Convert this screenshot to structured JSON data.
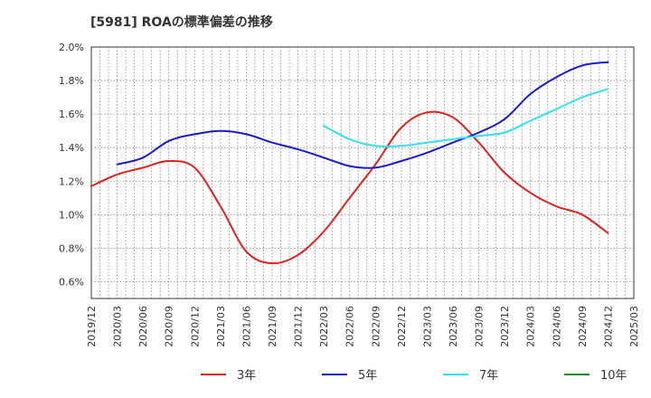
{
  "chart_data": {
    "type": "line",
    "title": "[5981]  ROAの標準偏差の推移",
    "xlabel": "",
    "ylabel": "",
    "ylim": [
      0.5,
      2.0
    ],
    "yticks": [
      {
        "value": 0.6,
        "label": "0.6%"
      },
      {
        "value": 0.8,
        "label": "0.8%"
      },
      {
        "value": 1.0,
        "label": "1.0%"
      },
      {
        "value": 1.2,
        "label": "1.2%"
      },
      {
        "value": 1.4,
        "label": "1.4%"
      },
      {
        "value": 1.6,
        "label": "1.6%"
      },
      {
        "value": 1.8,
        "label": "1.8%"
      },
      {
        "value": 2.0,
        "label": "2.0%"
      }
    ],
    "x_categories": [
      "2019/12",
      "2020/03",
      "2020/06",
      "2020/09",
      "2020/12",
      "2021/03",
      "2021/06",
      "2021/09",
      "2021/12",
      "2022/03",
      "2022/06",
      "2022/09",
      "2022/12",
      "2023/03",
      "2023/06",
      "2023/09",
      "2023/12",
      "2024/03",
      "2024/06",
      "2024/09",
      "2024/12",
      "2025/03"
    ],
    "grid": true,
    "legend_position": "bottom",
    "series": [
      {
        "name": "3年",
        "color": "#dd2222",
        "points": [
          [
            "2019/12",
            1.17
          ],
          [
            "2020/03",
            1.24
          ],
          [
            "2020/06",
            1.28
          ],
          [
            "2020/09",
            1.32
          ],
          [
            "2020/12",
            1.28
          ],
          [
            "2021/03",
            1.05
          ],
          [
            "2021/06",
            0.78
          ],
          [
            "2021/09",
            0.71
          ],
          [
            "2021/12",
            0.76
          ],
          [
            "2022/03",
            0.9
          ],
          [
            "2022/06",
            1.1
          ],
          [
            "2022/09",
            1.3
          ],
          [
            "2022/12",
            1.52
          ],
          [
            "2023/03",
            1.61
          ],
          [
            "2023/06",
            1.58
          ],
          [
            "2023/09",
            1.43
          ],
          [
            "2023/12",
            1.25
          ],
          [
            "2024/03",
            1.13
          ],
          [
            "2024/06",
            1.05
          ],
          [
            "2024/09",
            1.0
          ],
          [
            "2024/12",
            0.89
          ]
        ]
      },
      {
        "name": "5年",
        "color": "#1a1acc",
        "points": [
          [
            "2020/03",
            1.3
          ],
          [
            "2020/06",
            1.34
          ],
          [
            "2020/09",
            1.44
          ],
          [
            "2020/12",
            1.48
          ],
          [
            "2021/03",
            1.5
          ],
          [
            "2021/06",
            1.48
          ],
          [
            "2021/09",
            1.43
          ],
          [
            "2021/12",
            1.39
          ],
          [
            "2022/03",
            1.34
          ],
          [
            "2022/06",
            1.29
          ],
          [
            "2022/09",
            1.28
          ],
          [
            "2022/12",
            1.32
          ],
          [
            "2023/03",
            1.37
          ],
          [
            "2023/06",
            1.43
          ],
          [
            "2023/09",
            1.49
          ],
          [
            "2023/12",
            1.57
          ],
          [
            "2024/03",
            1.72
          ],
          [
            "2024/06",
            1.82
          ],
          [
            "2024/09",
            1.89
          ],
          [
            "2024/12",
            1.91
          ]
        ]
      },
      {
        "name": "7年",
        "color": "#33e0f0",
        "points": [
          [
            "2022/03",
            1.53
          ],
          [
            "2022/06",
            1.45
          ],
          [
            "2022/09",
            1.41
          ],
          [
            "2022/12",
            1.41
          ],
          [
            "2023/03",
            1.43
          ],
          [
            "2023/06",
            1.45
          ],
          [
            "2023/09",
            1.47
          ],
          [
            "2023/12",
            1.49
          ],
          [
            "2024/03",
            1.56
          ],
          [
            "2024/06",
            1.63
          ],
          [
            "2024/09",
            1.7
          ],
          [
            "2024/12",
            1.75
          ]
        ]
      },
      {
        "name": "10年",
        "color": "#228822",
        "points": []
      }
    ]
  }
}
